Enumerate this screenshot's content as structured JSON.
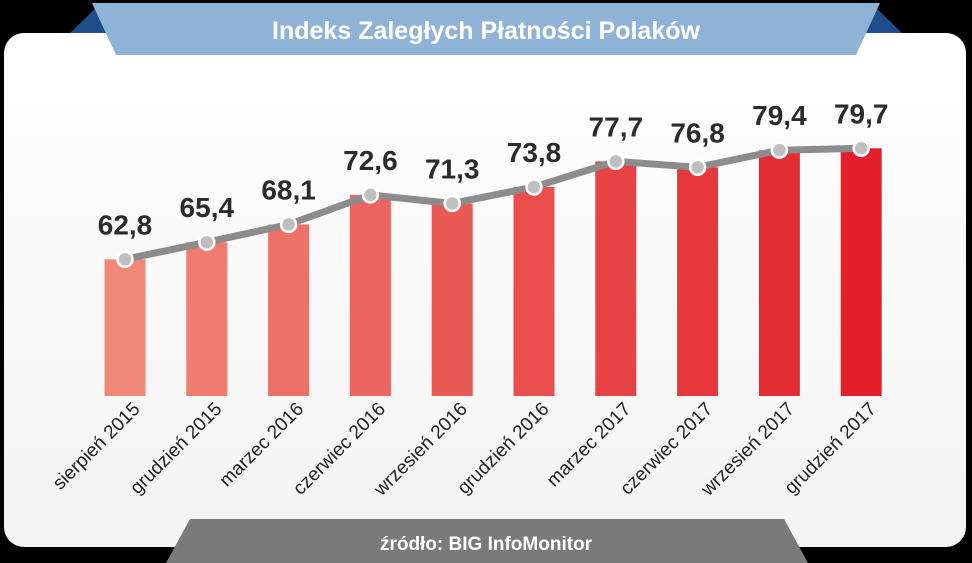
{
  "header": {
    "title": "Indeks Zaległych Płatności Polaków"
  },
  "footer": {
    "source": "źródło: BIG InfoMonitor"
  },
  "colors": {
    "page_background": "#000000",
    "panel_background": "#ffffff",
    "title_banner": "#8fb3d6",
    "title_banner_edge": "#1e4f8c",
    "footer_banner": "#7a7a7a",
    "line": "#8c8c8c",
    "marker_fill": "#bfbfbf",
    "bar_start": "#f08878",
    "bar_end": "#e3202a"
  },
  "chart_data": {
    "type": "bar",
    "categories": [
      "sierpień 2015",
      "grudzień 2015",
      "marzec 2016",
      "czerwiec 2016",
      "wrzesień 2016",
      "grudzień 2016",
      "marzec 2017",
      "czerwiec 2017",
      "wrzesień 2017",
      "grudzień 2017"
    ],
    "values": [
      62.8,
      65.4,
      68.1,
      72.6,
      71.3,
      73.8,
      77.7,
      76.8,
      79.4,
      79.7
    ],
    "value_labels": [
      "62,8",
      "65,4",
      "68,1",
      "72,6",
      "71,3",
      "73,8",
      "77,7",
      "76,8",
      "79,4",
      "79,7"
    ],
    "title": "Indeks Zaległych Płatności Polaków",
    "xlabel": "",
    "ylabel": "",
    "ylim": [
      42,
      84
    ],
    "overlay": "line with circular markers connecting bar tops",
    "grid": false,
    "legend": "none"
  }
}
